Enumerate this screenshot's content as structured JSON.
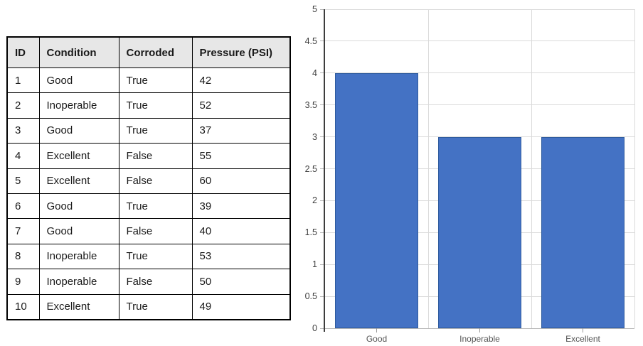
{
  "table": {
    "headers": [
      "ID",
      "Condition",
      "Corroded",
      "Pressure (PSI)"
    ],
    "rows": [
      [
        "1",
        "Good",
        "True",
        "42"
      ],
      [
        "2",
        "Inoperable",
        "True",
        "52"
      ],
      [
        "3",
        "Good",
        "True",
        "37"
      ],
      [
        "4",
        "Excellent",
        "False",
        "55"
      ],
      [
        "5",
        "Excellent",
        "False",
        "60"
      ],
      [
        "6",
        "Good",
        "True",
        "39"
      ],
      [
        "7",
        "Good",
        "False",
        "40"
      ],
      [
        "8",
        "Inoperable",
        "True",
        "53"
      ],
      [
        "9",
        "Inoperable",
        "False",
        "50"
      ],
      [
        "10",
        "Excellent",
        "True",
        "49"
      ]
    ]
  },
  "chart_data": {
    "type": "bar",
    "categories": [
      "Good",
      "Inoperable",
      "Excellent"
    ],
    "values": [
      4,
      3,
      3
    ],
    "title": "",
    "xlabel": "",
    "ylabel": "",
    "ylim": [
      0,
      5
    ],
    "ytick_step": 0.5,
    "ytick_labels": [
      "0",
      "0.5",
      "1",
      "1.5",
      "2",
      "2.5",
      "3",
      "3.5",
      "4",
      "4.5",
      "5"
    ],
    "grid": true,
    "legend": false,
    "bar_color": "#4472C4",
    "bar_border_color": "#2E5B9E"
  },
  "colors": {
    "gridline": "#dadada",
    "y_axis_line": "#3d3d3d",
    "x_axis_line": "#b7b7b7",
    "y_tick": "#b5b5b5",
    "x_tick": "#999999",
    "table_header_bg": "#e7e7e7",
    "table_border": "#000000"
  }
}
